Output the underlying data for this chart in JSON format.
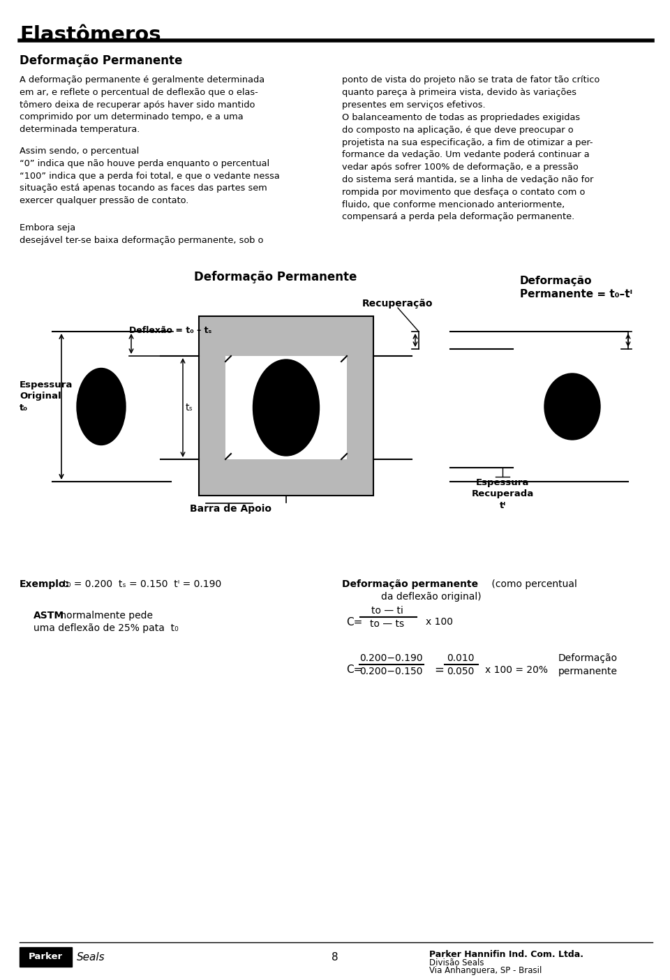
{
  "page_title": "Elastômeros",
  "section_title": "Deformação Permanente",
  "p_left_1": "A deformação permanente é geralmente determinada\nem ar, e reflete o percentual de deflexão que o elas-\ntômero deixa de recuperar após haver sido mantido\ncomprimido por um determinado tempo, e a uma\ndeterminada temperatura.",
  "p_left_2": "Assim sendo, o percentual\n“0” indica que não houve perda enquanto o percentual\n“100” indica que a perda foi total, e que o vedante nessa\nsituação está apenas tocando as faces das partes sem\nexercer qualquer pressão de contato.",
  "p_left_3": "Embora seja\ndesejável ter-se baixa deformação permanente, sob o",
  "p_right_1": "ponto de vista do projeto não se trata de fator tão crítico\nquanto pareça à primeira vista, devido às variações\npresentes em serviços efetivos.",
  "p_right_2": "O balanceamento de todas as propriedades exigidas\ndo composto na aplicação, é que deve preocupar o\nprojetista na sua especificação, a fim de otimizar a per-\nformance da vedação. Um vedante poderá continuar a\nvedar após sofrer 100% de deformação, e a pressão\ndo sistema será mantida, se a linha de vedação não for\nrompida por movimento que desfaça o contato com o\nfluido, que conforme mencionado anteriormente,\ncompensará a perda pela deformação permanente.",
  "diag_center_title": "Deformação Permanente",
  "diag_right_title_1": "Deformação",
  "diag_right_title_2": "Permanente = t₀–tᴵ",
  "label_deflexao": "Deflexão = t₀ – tₛ",
  "label_espessura_orig": "Espessura\nOriginal\nt₀",
  "label_ts": "tₛ",
  "label_recuperacao": "Recuperação",
  "label_barra": "Barra de Apoio",
  "label_espessura_rec": "Espessura\nRecuperada\ntᴵ",
  "exemplo_bold": "Exemplo:",
  "exemplo_rest": " t₀ = 0.200  tₛ = 0.150  tᴵ = 0.190",
  "astm_bold": "ASTM",
  "astm_rest": " normalmente pede",
  "astm_line2": "uma deflexão de 25% pata  t₀",
  "def_perm_bold": "Deformação permanente",
  "def_perm_rest": " (como percentual",
  "def_perm_line2": "da deflexão original)",
  "page_num": "8",
  "footer_company": "Parker Hannifin Ind. Com. Ltda.",
  "footer_div": "Divisão Seals",
  "footer_addr": "Via Anhanguera, SP - Brasil",
  "bg_color": "#ffffff",
  "gray_fill": "#b8b8b8",
  "gray_dark": "#888888"
}
